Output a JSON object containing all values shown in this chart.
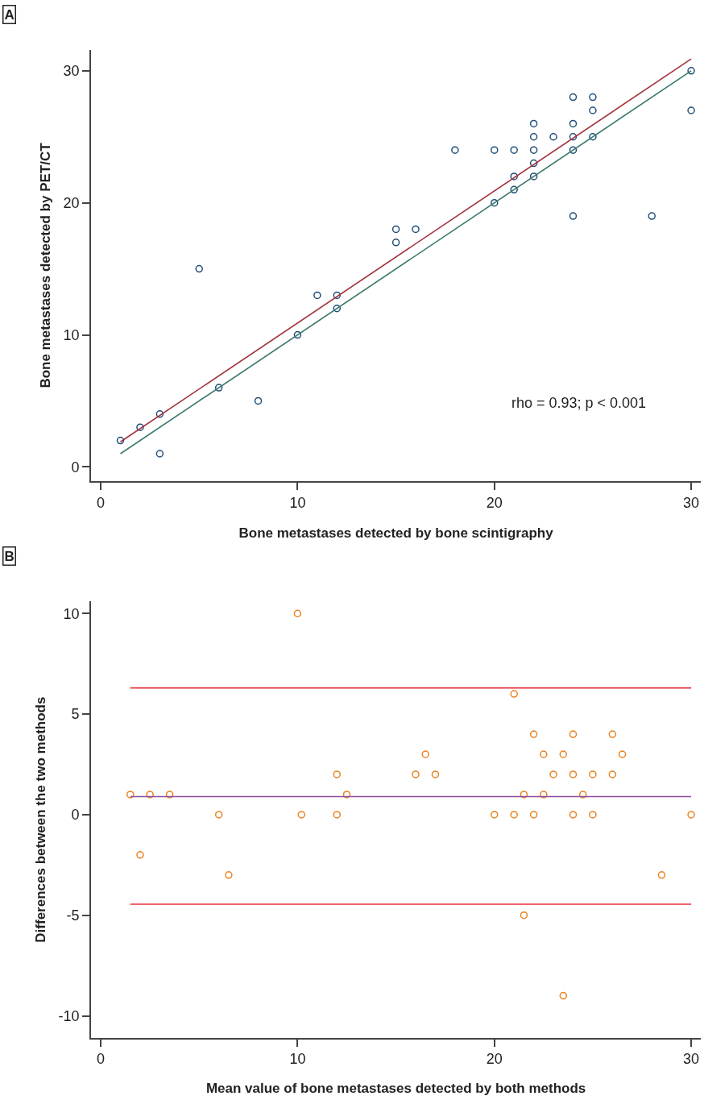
{
  "chart_data": [
    {
      "type": "scatter",
      "title": "A",
      "xlabel": "Bone metastases detected by bone scintigraphy",
      "ylabel": "Bone metastases detected by PET/CT",
      "xlim": [
        -0.5,
        30.5
      ],
      "ylim": [
        -1.1,
        31.6
      ],
      "xticks": [
        0,
        10,
        20,
        30
      ],
      "yticks": [
        0,
        10,
        20,
        30
      ],
      "marker": "circle",
      "annotations": [
        "rho = 0.93; p < 0.001"
      ],
      "series": [
        {
          "color": "#1f4e79",
          "x": [
            1,
            2,
            3,
            3,
            5,
            6,
            8,
            10,
            11,
            12,
            12,
            15,
            15,
            16,
            18,
            20,
            20,
            21,
            21,
            21,
            22,
            22,
            22,
            22,
            22,
            23,
            24,
            24,
            24,
            24,
            24,
            25,
            25,
            25,
            28,
            30,
            30
          ],
          "values": [
            2,
            3,
            4,
            1,
            15,
            6,
            5,
            10,
            13,
            13,
            12,
            18,
            17,
            18,
            24,
            24,
            20,
            24,
            22,
            21,
            26,
            25,
            24,
            23,
            22,
            25,
            28,
            26,
            25,
            24,
            19,
            28,
            27,
            25,
            19,
            30,
            27
          ]
        },
        {
          "type": "line",
          "marker": "none",
          "color": "#a3333d",
          "x": [
            1,
            30
          ],
          "values": [
            1.9,
            30.9
          ]
        },
        {
          "type": "line",
          "marker": "none",
          "color": "#3a7a6c",
          "x": [
            1,
            30
          ],
          "values": [
            1,
            30
          ]
        }
      ]
    },
    {
      "type": "scatter",
      "title": "B",
      "xlabel": "Mean value of bone metastases detected by both methods",
      "ylabel": "Differences between the two methods",
      "xlim": [
        -0.5,
        30.5
      ],
      "ylim": [
        -11.1,
        10.6
      ],
      "xticks": [
        0,
        10,
        20,
        30
      ],
      "yticks": [
        {
          "value": -10,
          "label": "-10"
        },
        {
          "value": -5,
          "label": "-5"
        },
        0,
        5,
        10
      ],
      "marker": "circle",
      "ref_lines": [
        {
          "axis": "y",
          "value": 6.3,
          "color": "#e8313b"
        },
        {
          "axis": "y",
          "value": 0.9,
          "color": "#8b4b9b"
        },
        {
          "axis": "y",
          "value": -4.45,
          "color": "#e8313b"
        }
      ],
      "series": [
        {
          "color": "#e8821e",
          "x": [
            1.5,
            2.5,
            3.5,
            2,
            6,
            6.5,
            10,
            10.2,
            12,
            12,
            12.5,
            16,
            16.5,
            17,
            20,
            21,
            21,
            21.5,
            21.5,
            22,
            22,
            22.5,
            22.5,
            23,
            23.5,
            23.5,
            24,
            24,
            24,
            24.5,
            25,
            25,
            26,
            26,
            26.5,
            28.5,
            30
          ],
          "values": [
            1,
            1,
            1,
            -2,
            0,
            -3,
            10,
            0,
            2,
            0,
            1,
            2,
            3,
            2,
            0,
            6,
            0,
            1,
            -5,
            4,
            0,
            3,
            1,
            2,
            3,
            -9,
            4,
            2,
            0,
            1,
            2,
            0,
            4,
            2,
            3,
            -3,
            0
          ]
        }
      ]
    }
  ]
}
